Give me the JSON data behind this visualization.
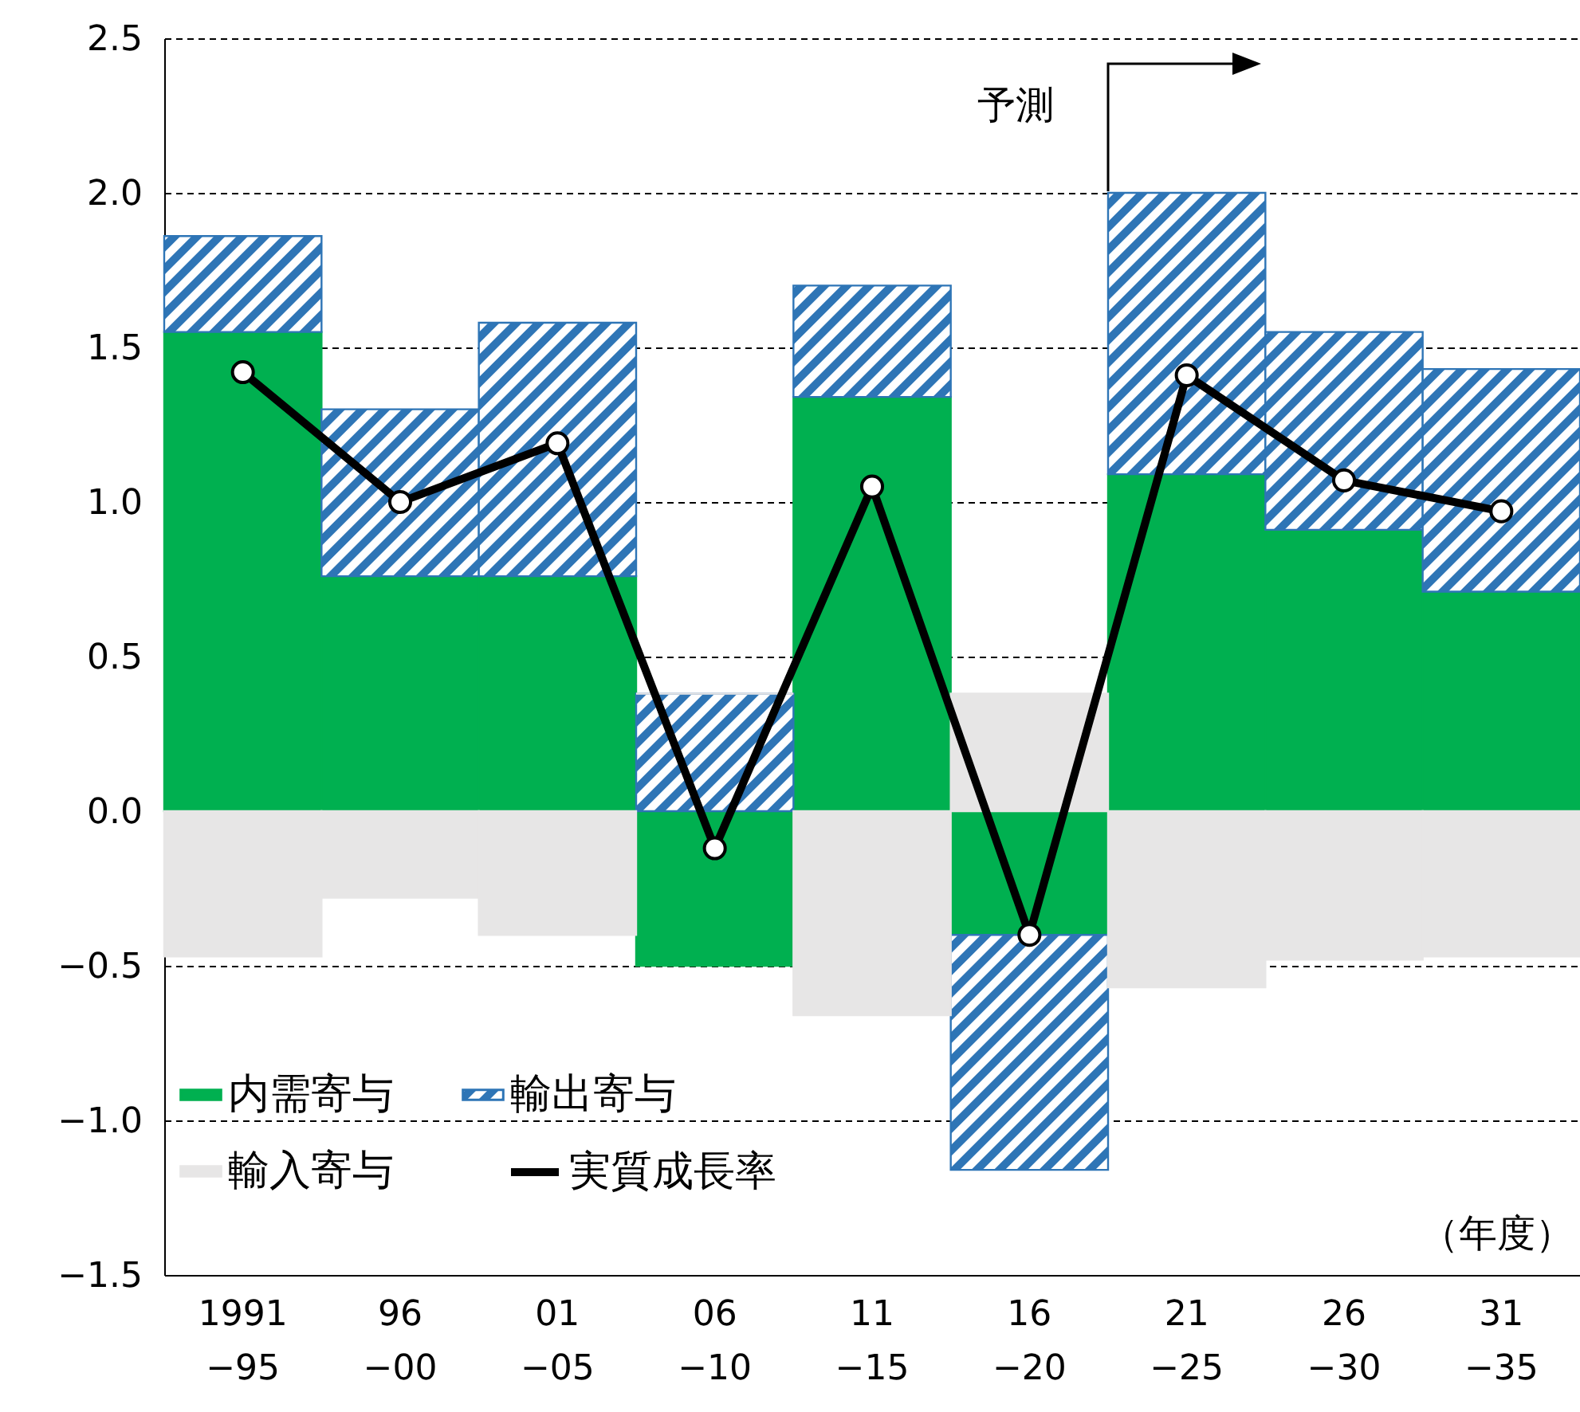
{
  "chart_data": {
    "type": "bar",
    "stacked": true,
    "categories": [
      "1991\n−95",
      "96\n−00",
      "01\n−05",
      "06\n−10",
      "11\n−15",
      "16\n−20",
      "21\n−25",
      "26\n−30",
      "31\n−35"
    ],
    "series": [
      {
        "name": "内需寄与",
        "color": "#00b050",
        "values": [
          1.55,
          0.76,
          0.76,
          -0.5,
          1.34,
          -0.4,
          1.09,
          0.91,
          0.71
        ]
      },
      {
        "name": "輸出寄与",
        "color": "#2e75b6",
        "values": [
          0.31,
          0.54,
          0.82,
          0.38,
          0.36,
          -0.76,
          0.91,
          0.64,
          0.72
        ]
      },
      {
        "name": "輸入寄与",
        "color": "#e7e6e6",
        "values": [
          -0.47,
          -0.28,
          -0.4,
          0,
          -0.66,
          0.38,
          -0.57,
          -0.48,
          -0.47
        ]
      },
      {
        "name": "実質成長率",
        "type": "line",
        "color": "#000000",
        "values": [
          1.42,
          1.0,
          1.19,
          -0.12,
          1.05,
          -0.4,
          1.41,
          1.07,
          0.97
        ]
      }
    ],
    "ylim": [
      -1.5,
      2.5
    ],
    "yticks": [
      {
        "value": -1.5,
        "label": "−1.5"
      },
      {
        "value": -1,
        "label": "−1.0"
      },
      {
        "value": -0.5,
        "label": "−0.5"
      },
      {
        "value": 0,
        "label": "0.0"
      },
      {
        "value": 0.5,
        "label": "0.5"
      },
      {
        "value": 1,
        "label": "1.0"
      },
      {
        "value": 1.5,
        "label": "1.5"
      },
      {
        "value": 2,
        "label": "2.0"
      },
      {
        "value": 2.5,
        "label": "2.5"
      }
    ],
    "grid": "y",
    "legend": "bottom left",
    "marker": "circle",
    "annotations": [
      "予測",
      "（年度）"
    ]
  }
}
